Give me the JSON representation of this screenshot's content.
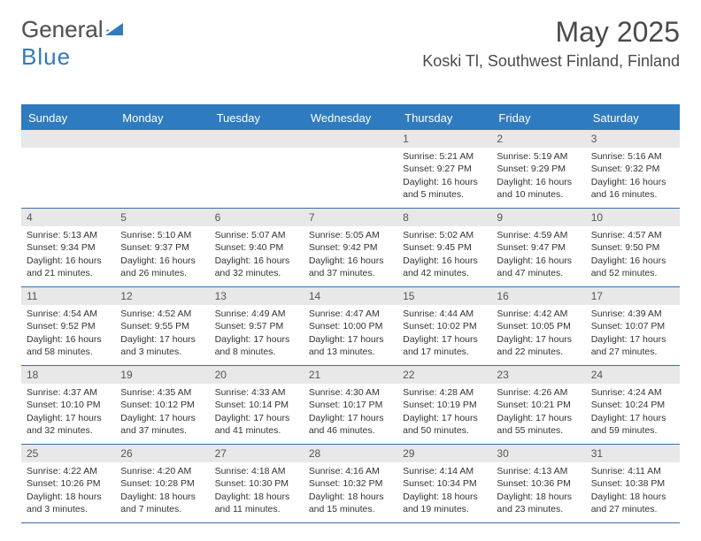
{
  "brand": {
    "part1": "General",
    "part2": "Blue"
  },
  "colors": {
    "accent": "#2f7bbf",
    "header_bg": "#2f7bbf",
    "header_text": "#ffffff",
    "daynum_bg": "#e8e8e8",
    "body_text": "#333333",
    "rule": "#3a6ea5"
  },
  "month_title": "May 2025",
  "location": "Koski Tl, Southwest Finland, Finland",
  "dow": [
    "Sunday",
    "Monday",
    "Tuesday",
    "Wednesday",
    "Thursday",
    "Friday",
    "Saturday"
  ],
  "weeks": [
    [
      {
        "empty": true
      },
      {
        "empty": true
      },
      {
        "empty": true
      },
      {
        "empty": true
      },
      {
        "n": "1",
        "sr": "5:21 AM",
        "ss": "9:27 PM",
        "dl": "16 hours and 5 minutes."
      },
      {
        "n": "2",
        "sr": "5:19 AM",
        "ss": "9:29 PM",
        "dl": "16 hours and 10 minutes."
      },
      {
        "n": "3",
        "sr": "5:16 AM",
        "ss": "9:32 PM",
        "dl": "16 hours and 16 minutes."
      }
    ],
    [
      {
        "n": "4",
        "sr": "5:13 AM",
        "ss": "9:34 PM",
        "dl": "16 hours and 21 minutes."
      },
      {
        "n": "5",
        "sr": "5:10 AM",
        "ss": "9:37 PM",
        "dl": "16 hours and 26 minutes."
      },
      {
        "n": "6",
        "sr": "5:07 AM",
        "ss": "9:40 PM",
        "dl": "16 hours and 32 minutes."
      },
      {
        "n": "7",
        "sr": "5:05 AM",
        "ss": "9:42 PM",
        "dl": "16 hours and 37 minutes."
      },
      {
        "n": "8",
        "sr": "5:02 AM",
        "ss": "9:45 PM",
        "dl": "16 hours and 42 minutes."
      },
      {
        "n": "9",
        "sr": "4:59 AM",
        "ss": "9:47 PM",
        "dl": "16 hours and 47 minutes."
      },
      {
        "n": "10",
        "sr": "4:57 AM",
        "ss": "9:50 PM",
        "dl": "16 hours and 52 minutes."
      }
    ],
    [
      {
        "n": "11",
        "sr": "4:54 AM",
        "ss": "9:52 PM",
        "dl": "16 hours and 58 minutes."
      },
      {
        "n": "12",
        "sr": "4:52 AM",
        "ss": "9:55 PM",
        "dl": "17 hours and 3 minutes."
      },
      {
        "n": "13",
        "sr": "4:49 AM",
        "ss": "9:57 PM",
        "dl": "17 hours and 8 minutes."
      },
      {
        "n": "14",
        "sr": "4:47 AM",
        "ss": "10:00 PM",
        "dl": "17 hours and 13 minutes."
      },
      {
        "n": "15",
        "sr": "4:44 AM",
        "ss": "10:02 PM",
        "dl": "17 hours and 17 minutes."
      },
      {
        "n": "16",
        "sr": "4:42 AM",
        "ss": "10:05 PM",
        "dl": "17 hours and 22 minutes."
      },
      {
        "n": "17",
        "sr": "4:39 AM",
        "ss": "10:07 PM",
        "dl": "17 hours and 27 minutes."
      }
    ],
    [
      {
        "n": "18",
        "sr": "4:37 AM",
        "ss": "10:10 PM",
        "dl": "17 hours and 32 minutes."
      },
      {
        "n": "19",
        "sr": "4:35 AM",
        "ss": "10:12 PM",
        "dl": "17 hours and 37 minutes."
      },
      {
        "n": "20",
        "sr": "4:33 AM",
        "ss": "10:14 PM",
        "dl": "17 hours and 41 minutes."
      },
      {
        "n": "21",
        "sr": "4:30 AM",
        "ss": "10:17 PM",
        "dl": "17 hours and 46 minutes."
      },
      {
        "n": "22",
        "sr": "4:28 AM",
        "ss": "10:19 PM",
        "dl": "17 hours and 50 minutes."
      },
      {
        "n": "23",
        "sr": "4:26 AM",
        "ss": "10:21 PM",
        "dl": "17 hours and 55 minutes."
      },
      {
        "n": "24",
        "sr": "4:24 AM",
        "ss": "10:24 PM",
        "dl": "17 hours and 59 minutes."
      }
    ],
    [
      {
        "n": "25",
        "sr": "4:22 AM",
        "ss": "10:26 PM",
        "dl": "18 hours and 3 minutes."
      },
      {
        "n": "26",
        "sr": "4:20 AM",
        "ss": "10:28 PM",
        "dl": "18 hours and 7 minutes."
      },
      {
        "n": "27",
        "sr": "4:18 AM",
        "ss": "10:30 PM",
        "dl": "18 hours and 11 minutes."
      },
      {
        "n": "28",
        "sr": "4:16 AM",
        "ss": "10:32 PM",
        "dl": "18 hours and 15 minutes."
      },
      {
        "n": "29",
        "sr": "4:14 AM",
        "ss": "10:34 PM",
        "dl": "18 hours and 19 minutes."
      },
      {
        "n": "30",
        "sr": "4:13 AM",
        "ss": "10:36 PM",
        "dl": "18 hours and 23 minutes."
      },
      {
        "n": "31",
        "sr": "4:11 AM",
        "ss": "10:38 PM",
        "dl": "18 hours and 27 minutes."
      }
    ]
  ],
  "labels": {
    "sunrise": "Sunrise:",
    "sunset": "Sunset:",
    "daylight": "Daylight:"
  }
}
